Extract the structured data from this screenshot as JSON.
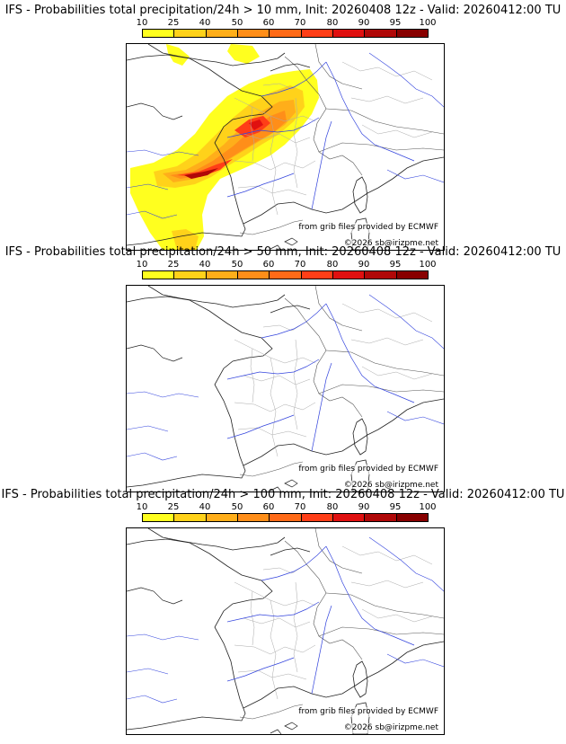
{
  "scale": {
    "ticks": [
      "10",
      "25",
      "40",
      "50",
      "60",
      "70",
      "80",
      "90",
      "95",
      "100"
    ],
    "colors": [
      "#ffff1f",
      "#ffd21a",
      "#ffae1a",
      "#ff8e19",
      "#ff6a17",
      "#ff3e17",
      "#e01010",
      "#b00808",
      "#880000"
    ]
  },
  "panels": [
    {
      "title": "IFS - Probabilities total precipitation/24h > 10 mm, Init: 20260408 12z - Valid: 20260412:00 TU",
      "threshold_mm": 10,
      "source_note": "from grib files provided by ECMWF",
      "copyright": "©2026 sb@irizpme.net"
    },
    {
      "title": "IFS - Probabilities total precipitation/24h > 50 mm, Init: 20260408 12z - Valid: 20260412:00 TU",
      "threshold_mm": 50,
      "source_note": "from grib files provided by ECMWF",
      "copyright": "©2026 sb@irizpme.net"
    },
    {
      "title": "IFS - Probabilities total precipitation/24h > 100 mm, Init: 20260408 12z - Valid: 20260412:00 TU",
      "threshold_mm": 100,
      "source_note": "from grib files provided by ECMWF",
      "copyright": "©2026 sb@irizpme.net"
    }
  ]
}
